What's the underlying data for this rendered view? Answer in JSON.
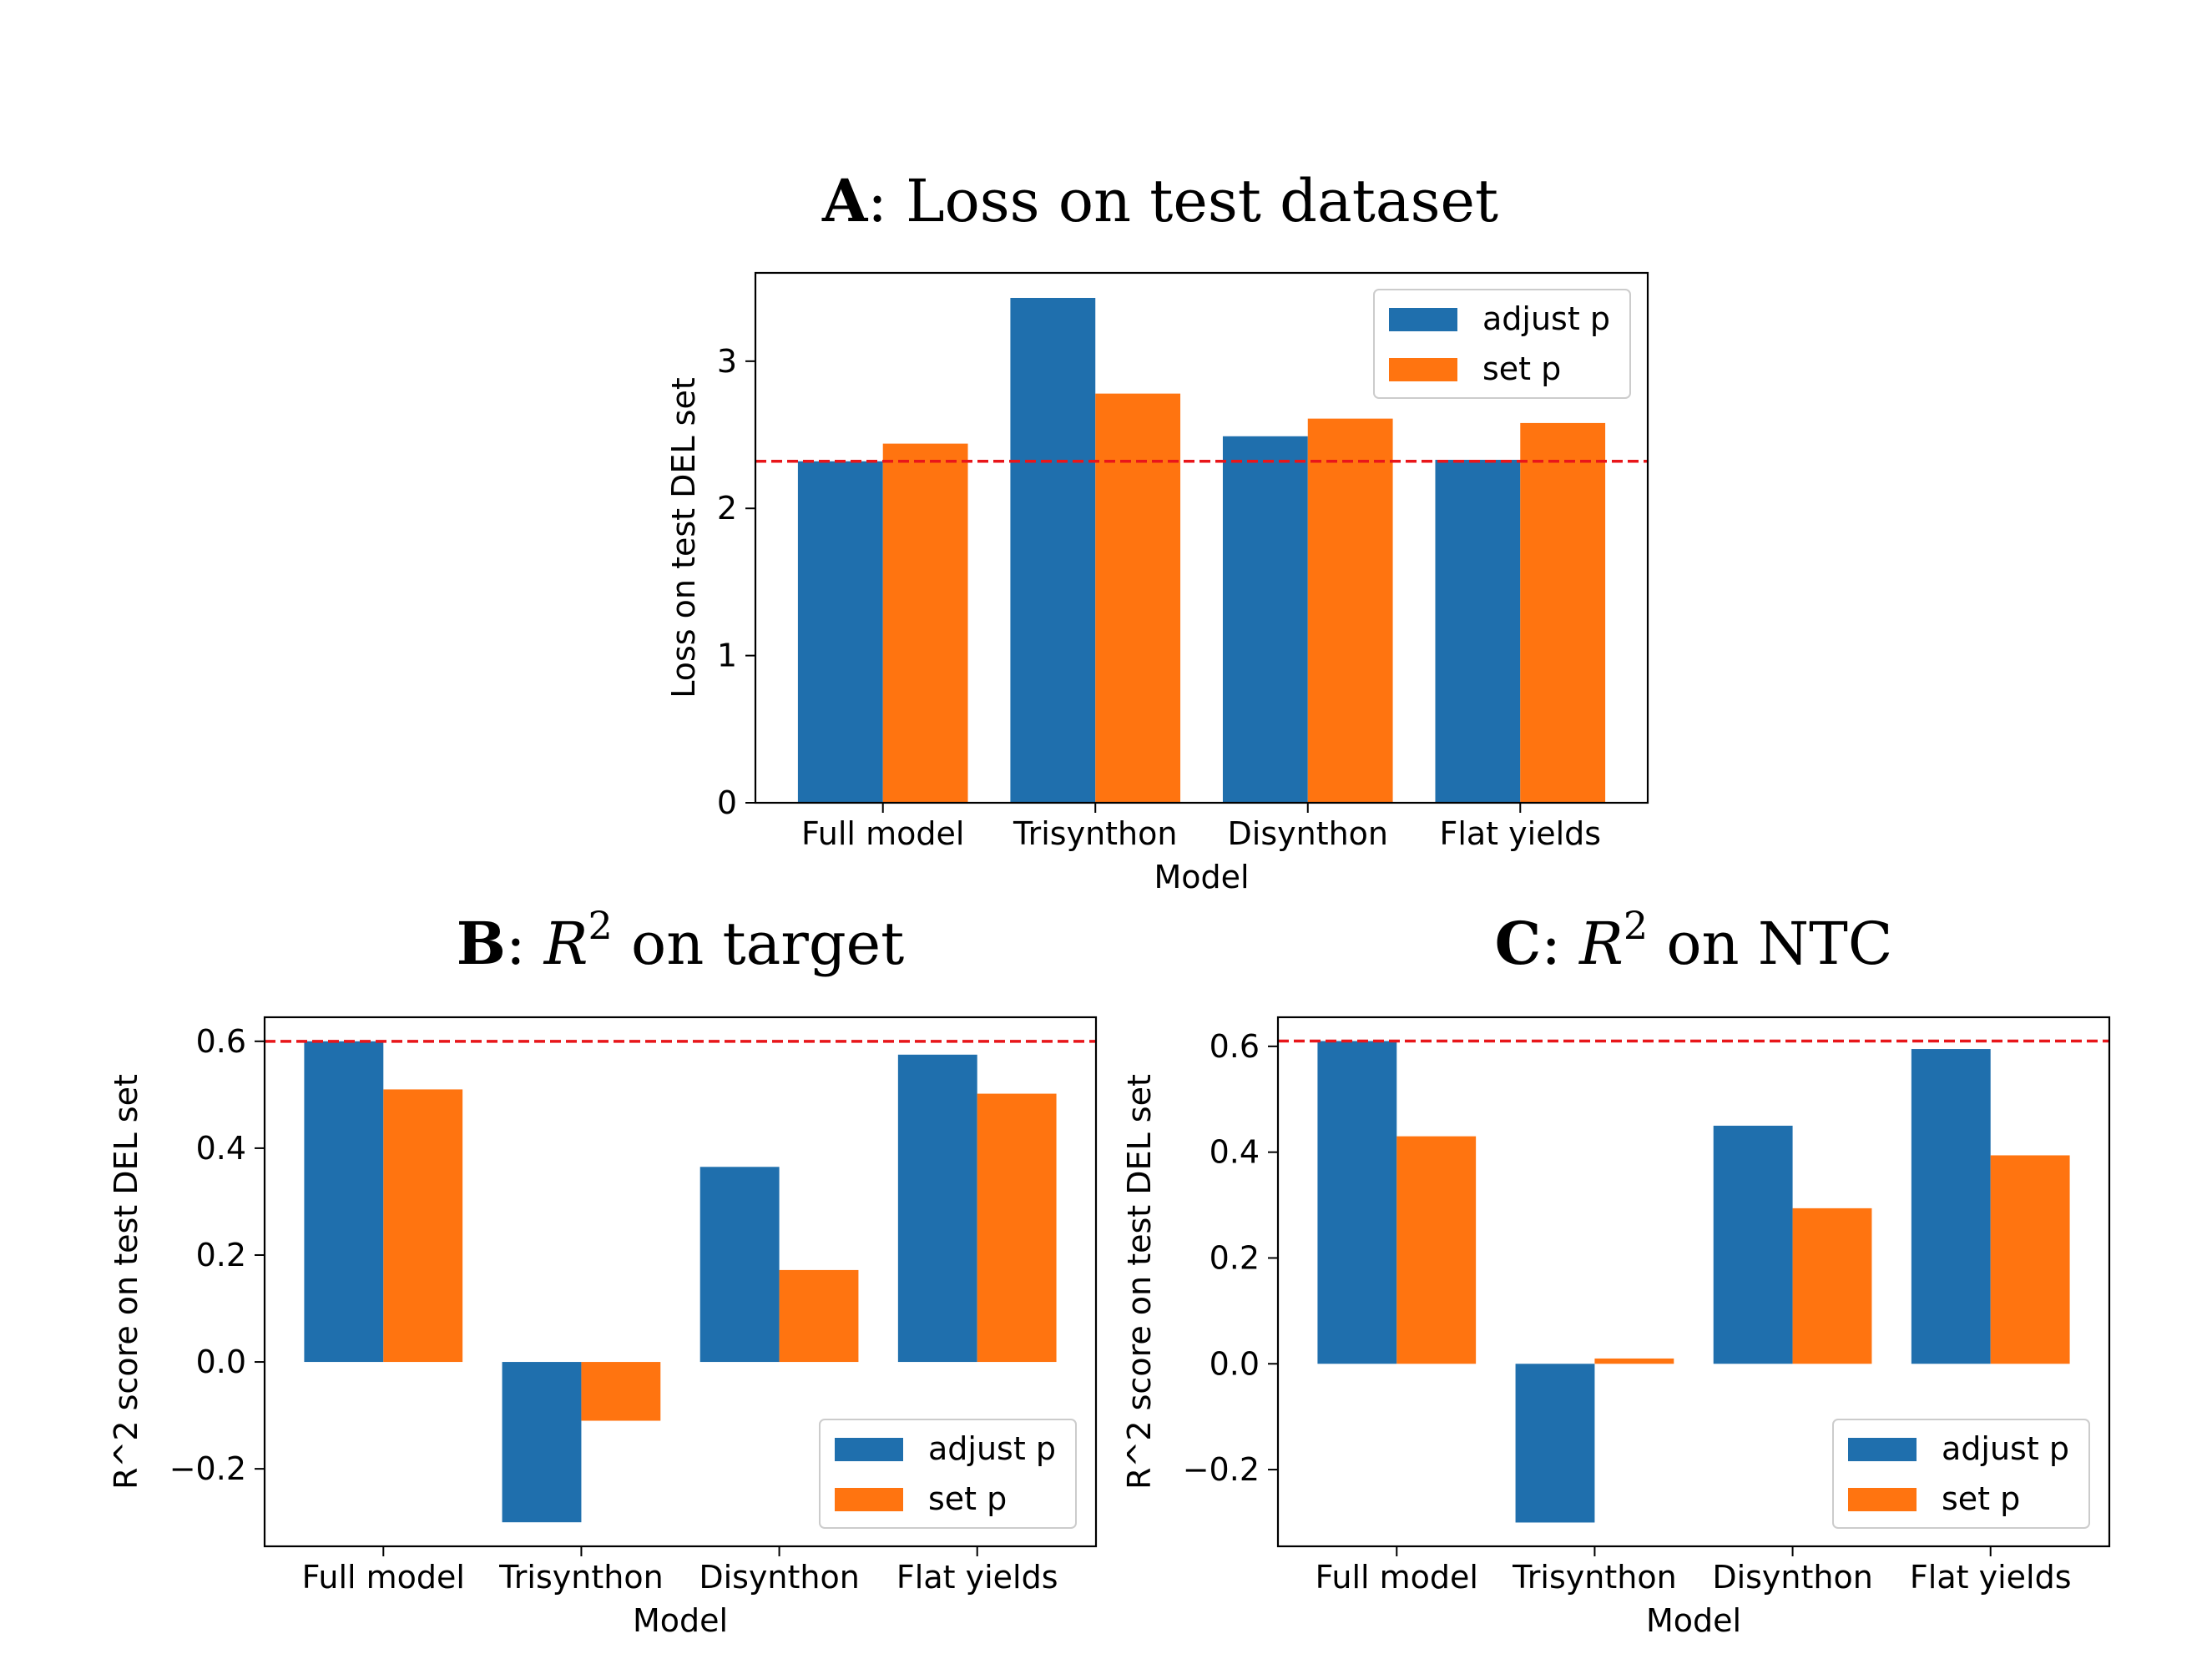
{
  "colors": {
    "adjust": "#1f6fad",
    "set": "#ff7410",
    "ref": "#e8161a"
  },
  "chart_data": [
    {
      "id": "A",
      "type": "bar",
      "title": {
        "letter": "A",
        "rest": ": Loss on test dataset"
      },
      "categories": [
        "Full model",
        "Trisynthon",
        "Disynthon",
        "Flat yields"
      ],
      "series": [
        {
          "name": "adjust p",
          "values": [
            2.32,
            3.43,
            2.49,
            2.33
          ]
        },
        {
          "name": "set p",
          "values": [
            2.44,
            2.78,
            2.61,
            2.58
          ]
        }
      ],
      "reference_line": 2.32,
      "xlabel": "Model",
      "ylabel": "Loss on test DEL set",
      "ylim": [
        0,
        3.6
      ],
      "yticks": [
        0,
        1,
        2,
        3
      ],
      "ytick_labels": [
        "0",
        "1",
        "2",
        "3"
      ],
      "legend": "top-right"
    },
    {
      "id": "B",
      "type": "bar",
      "title": {
        "letter": "B",
        "sep": ": ",
        "var": "R",
        "sup": "2",
        "rest": " on target"
      },
      "categories": [
        "Full model",
        "Trisynthon",
        "Disynthon",
        "Flat yields"
      ],
      "series": [
        {
          "name": "adjust p",
          "values": [
            0.6,
            -0.3,
            0.365,
            0.575
          ]
        },
        {
          "name": "set p",
          "values": [
            0.51,
            -0.11,
            0.172,
            0.502
          ]
        }
      ],
      "reference_line": 0.6,
      "xlabel": "Model",
      "ylabel": "R^2 score on test DEL set",
      "ylim": [
        -0.345,
        0.645
      ],
      "yticks": [
        -0.2,
        0,
        0.2,
        0.4,
        0.6
      ],
      "ytick_labels": [
        "−0.2",
        "0.0",
        "0.2",
        "0.4",
        "0.6"
      ],
      "legend": "bottom-right"
    },
    {
      "id": "C",
      "type": "bar",
      "title": {
        "letter": "C",
        "sep": ": ",
        "var": "R",
        "sup": "2",
        "rest": " on NTC"
      },
      "categories": [
        "Full model",
        "Trisynthon",
        "Disynthon",
        "Flat yields"
      ],
      "series": [
        {
          "name": "adjust p",
          "values": [
            0.61,
            -0.3,
            0.45,
            0.595
          ]
        },
        {
          "name": "set p",
          "values": [
            0.43,
            0.01,
            0.294,
            0.394
          ]
        }
      ],
      "reference_line": 0.61,
      "xlabel": "Model",
      "ylabel": "R^2 score on test DEL set",
      "ylim": [
        -0.345,
        0.655
      ],
      "yticks": [
        -0.2,
        0,
        0.2,
        0.4,
        0.6
      ],
      "ytick_labels": [
        "−0.2",
        "0.0",
        "0.2",
        "0.4",
        "0.6"
      ],
      "legend": "bottom-right"
    }
  ]
}
